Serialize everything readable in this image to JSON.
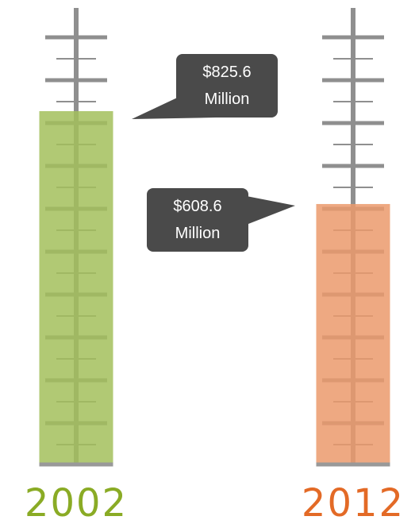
{
  "chart_data": {
    "type": "bar",
    "categories": [
      "2002",
      "2012"
    ],
    "values": [
      825.6,
      608.6
    ],
    "value_labels": [
      "$825.6 Million",
      "$608.6 Million"
    ],
    "colors": [
      "#a3bf5c",
      "#eb9a6c"
    ],
    "label_colors": [
      "#8aab25",
      "#e36a26"
    ]
  }
}
